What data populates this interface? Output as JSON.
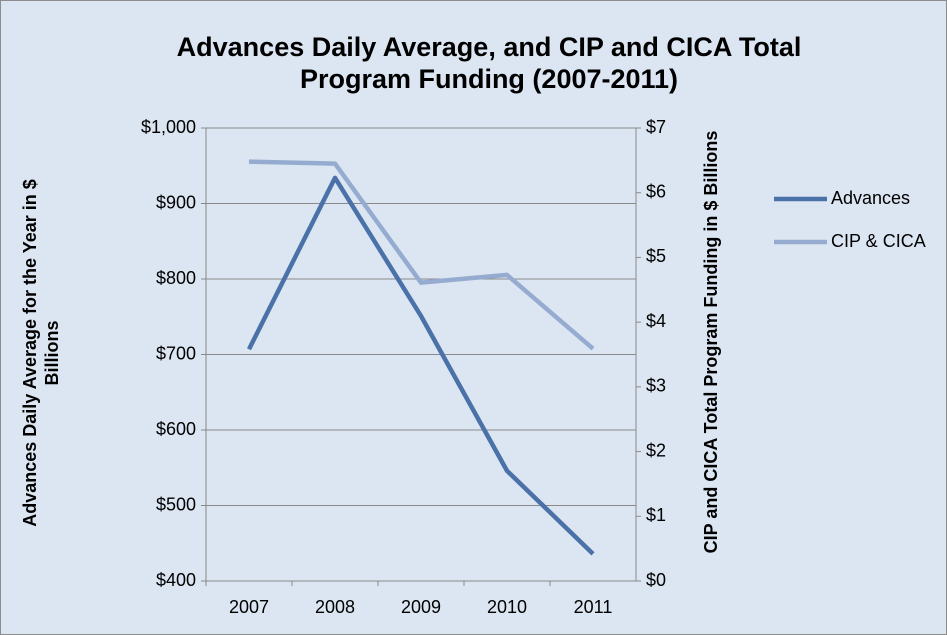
{
  "chart_data": {
    "type": "line",
    "title": "Advances Daily Average, and CIP and CICA Total Program Funding (2007-2011)",
    "y_label": "Advances  Daily  Average for the Year in $ Billions",
    "y2_label": "CIP and CICA Total Program Funding in $ Billions",
    "categories": [
      "2007",
      "2008",
      "2009",
      "2010",
      "2011"
    ],
    "series": [
      {
        "name": "Advances",
        "color": "#4a72a8",
        "values": [
          707,
          934,
          751,
          546,
          436
        ]
      },
      {
        "name": "CIP & CICA",
        "color": "#95acd0",
        "axis": "y2",
        "values": [
          6.48,
          6.45,
          4.61,
          4.73,
          3.59
        ]
      }
    ],
    "ylim": [
      400,
      1000
    ],
    "yticks": [
      {
        "value": 400,
        "label": "$400"
      },
      {
        "value": 500,
        "label": "$500"
      },
      {
        "value": 600,
        "label": "$600"
      },
      {
        "value": 700,
        "label": "$700"
      },
      {
        "value": 800,
        "label": "$800"
      },
      {
        "value": 900,
        "label": "$900"
      },
      {
        "value": 1000,
        "label": "$1,000"
      }
    ],
    "y2lim": [
      0,
      7
    ],
    "y2ticks": [
      {
        "value": 0,
        "label": "$0"
      },
      {
        "value": 1,
        "label": "$1"
      },
      {
        "value": 2,
        "label": "$2"
      },
      {
        "value": 3,
        "label": "$3"
      },
      {
        "value": 4,
        "label": "$4"
      },
      {
        "value": 5,
        "label": "$5"
      },
      {
        "value": 6,
        "label": "$6"
      },
      {
        "value": 7,
        "label": "$7"
      }
    ],
    "grid": true,
    "legend": "right"
  }
}
